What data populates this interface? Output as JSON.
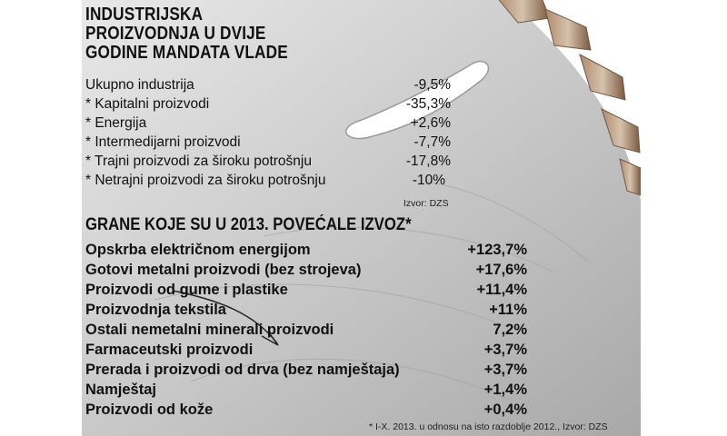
{
  "section1": {
    "title_lines": [
      "INDUSTRIJSKA",
      "PROIZVODNJA U DVIJE",
      "GODINE MANDATA VLADE"
    ],
    "rows": [
      {
        "label": "Ukupno industrija",
        "value": "-9,5%"
      },
      {
        "label": "* Kapitalni proizvodi",
        "value": "-35,3%"
      },
      {
        "label": "* Energija",
        "value": "+2,6%"
      },
      {
        "label": "* Intermedijarni proizvodi",
        "value": "-7,7%"
      },
      {
        "label": "* Trajni proizvodi za široku potrošnju",
        "value": "-17,8%"
      },
      {
        "label": "* Netrajni proizvodi za široku potrošnju",
        "value": "-10%"
      }
    ],
    "source": "Izvor: DZS"
  },
  "section2": {
    "title": "GRANE KOJE SU U 2013. POVEĆALE IZVOZ*",
    "rows": [
      {
        "label": "Opskrba električnom energijom",
        "value": "+123,7%"
      },
      {
        "label": "Gotovi metalni proizvodi (bez strojeva)",
        "value": "+17,6%"
      },
      {
        "label": "Proizvodi od gume i plastike",
        "value": "+11,4%"
      },
      {
        "label": "Proizvodnja tekstila",
        "value": "+11%"
      },
      {
        "label": "Ostali nemetalni minerali proizvodi",
        "value": "7,2%"
      },
      {
        "label": "Farmaceutski proizvodi",
        "value": "+3,7%"
      },
      {
        "label": "Prerada i proizvodi od drva (bez namještaja)",
        "value": "+3,7%"
      },
      {
        "label": "Namještaj",
        "value": "+1,4%"
      },
      {
        "label": "Proizvodi od kože",
        "value": "+0,4%"
      }
    ],
    "footnote": "* I-X. 2013. u odnosu na isto razdoblje 2012., Izvor: DZS"
  }
}
